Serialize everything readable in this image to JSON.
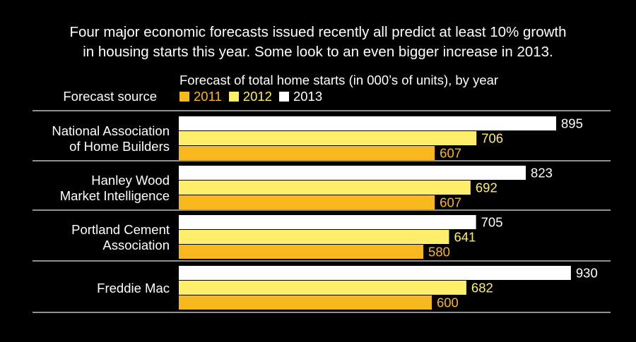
{
  "headline": {
    "line1": "Four major economic forecasts issued recently all predict at least 10% growth",
    "line2": "in housing starts this year. Some look to an even bigger increase in 2013."
  },
  "subtitle": "Forecast of total home starts (in 000’s of units), by year",
  "source_header": "Forecast source",
  "colors": {
    "2011": "#F7B71D",
    "2012": "#FFEE6A",
    "2013": "#FFFFFF",
    "label_2011": "#F7B71D",
    "label_2012": "#FFEE6A",
    "label_2013": "#FFFFFF"
  },
  "chart_data": {
    "type": "bar",
    "orientation": "horizontal",
    "categories": [
      [
        "National Association",
        "of Home Builders"
      ],
      [
        "Hanley Wood",
        "Market Intelligence"
      ],
      [
        "Portland Cement",
        "Association"
      ],
      [
        "Freddie Mac"
      ]
    ],
    "series": [
      {
        "name": "2011",
        "values": [
          607,
          607,
          580,
          600
        ]
      },
      {
        "name": "2012",
        "values": [
          706,
          692,
          641,
          682
        ]
      },
      {
        "name": "2013",
        "values": [
          895,
          823,
          705,
          930
        ]
      }
    ],
    "legend_placement": "top"
  }
}
